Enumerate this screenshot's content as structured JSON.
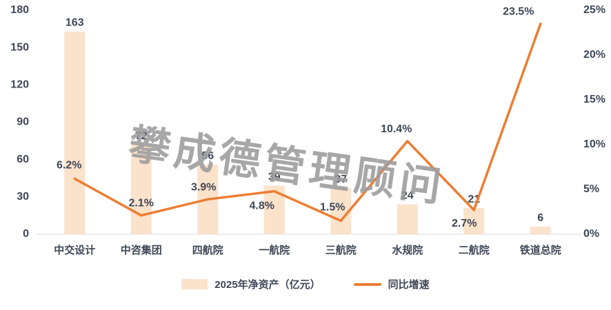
{
  "chart_data": {
    "type": "bar",
    "subtype": "combo-bar-line",
    "categories": [
      "中交设计",
      "中咨集团",
      "四航院",
      "一航院",
      "三航院",
      "水规院",
      "二航院",
      "铁道总院"
    ],
    "series": [
      {
        "name": "2025年净资产（亿元）",
        "type": "bar",
        "axis": "left",
        "values": [
          163,
          72,
          56,
          39,
          37,
          24,
          21,
          6
        ],
        "labels": [
          "163",
          "72",
          "56",
          "39",
          "37",
          "24",
          "21",
          "6"
        ],
        "color": "#fbe2cb"
      },
      {
        "name": "同比增速",
        "type": "line",
        "axis": "right",
        "values": [
          6.2,
          2.1,
          3.9,
          4.8,
          1.5,
          10.4,
          2.7,
          23.5
        ],
        "labels": [
          "6.2%",
          "2.1%",
          "3.9%",
          "4.8%",
          "1.5%",
          "10.4%",
          "2.7%",
          "23.5%"
        ],
        "label_offsets": [
          [
            -8,
            -15
          ],
          [
            0,
            -13
          ],
          [
            -6,
            -13
          ],
          [
            -18,
            26
          ],
          [
            -12,
            -15
          ],
          [
            -16,
            -13
          ],
          [
            -14,
            24
          ],
          [
            -32,
            -13
          ]
        ],
        "color": "#ed7d31"
      }
    ],
    "left_axis": {
      "min": 0,
      "max": 180,
      "ticks": [
        "0",
        "30",
        "60",
        "90",
        "120",
        "150",
        "180"
      ]
    },
    "right_axis": {
      "min": 0,
      "max": 25,
      "ticks": [
        "0%",
        "5%",
        "10%",
        "15%",
        "20%",
        "25%"
      ]
    },
    "legend_position": "bottom",
    "grid": false
  },
  "legend": {
    "bar_label": "2025年净资产（亿元）",
    "line_label": "同比增速"
  },
  "watermark": {
    "text": "攀成德管理顾问",
    "color": "#9c9c9c"
  },
  "colors": {
    "bar": "#fbe2cb",
    "line": "#ed7d31",
    "label": "#3f4756",
    "axis_line": "#d9d9d9",
    "background": "#ffffff"
  }
}
